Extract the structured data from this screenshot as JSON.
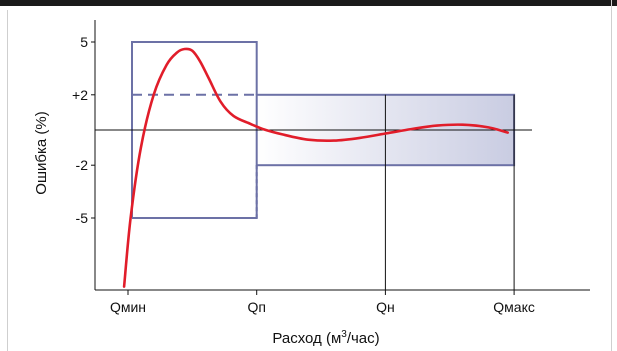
{
  "chart_data": {
    "type": "line",
    "xlabel": "Расход (м³/час)",
    "xlabel_base": "Расход (м",
    "xlabel_sup": "3",
    "xlabel_tail": "/час)",
    "ylabel": "Ошибка (%)",
    "x_categories": [
      "Qмин",
      "Qп",
      "Qн",
      "Qмакс"
    ],
    "y_ticks": [
      {
        "label": "5",
        "value": 5
      },
      {
        "label": "+2",
        "value": 2
      },
      {
        "label": "-2",
        "value": -2
      },
      {
        "label": "-5",
        "value": -5
      }
    ],
    "x_range": [
      0,
      4
    ],
    "y_range": [
      -9.3,
      7.5
    ],
    "tolerance_band": {
      "low_flow": {
        "x": [
          1,
          2
        ],
        "upper": 5,
        "lower": -5,
        "dashed_upper": 2
      },
      "high_flow": {
        "x": [
          2,
          4
        ],
        "upper": 2,
        "lower": -2,
        "gradient": true
      }
    },
    "series": [
      {
        "color": "#e11d2a",
        "x": [
          0.97,
          1.02,
          1.1,
          1.2,
          1.3,
          1.38,
          1.44,
          1.5,
          1.56,
          1.63,
          1.72,
          1.82,
          1.95,
          2.05,
          2.2,
          2.4,
          2.6,
          2.8,
          3.0,
          3.2,
          3.4,
          3.6,
          3.8,
          3.95
        ],
        "y": [
          -8.9,
          -5.0,
          -1.0,
          2.0,
          3.7,
          4.4,
          4.6,
          4.5,
          3.9,
          2.9,
          1.6,
          0.8,
          0.35,
          0.05,
          -0.25,
          -0.55,
          -0.6,
          -0.45,
          -0.2,
          0.05,
          0.25,
          0.3,
          0.15,
          -0.15
        ]
      }
    ],
    "grid": false
  }
}
